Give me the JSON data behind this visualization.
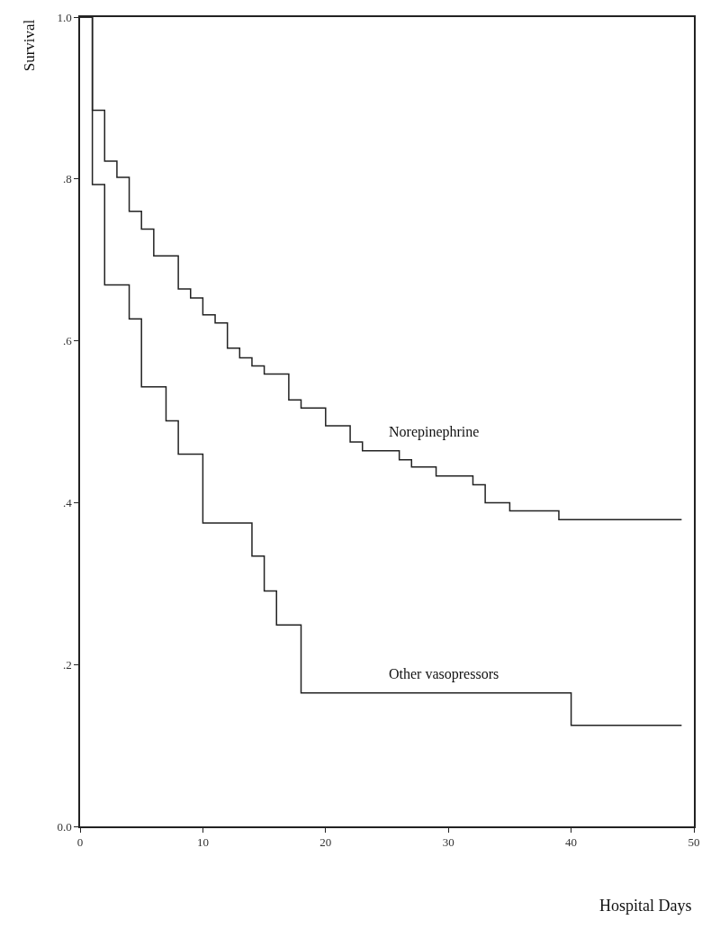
{
  "chart_data": {
    "type": "step",
    "xlabel": "Hospital Days",
    "ylabel": "Survival",
    "xlim": [
      0,
      50
    ],
    "xticks": [
      0,
      10,
      20,
      30,
      40,
      50
    ],
    "ylim": [
      0,
      1
    ],
    "yticks": [
      {
        "value": 1,
        "label": "1.0"
      },
      {
        "value": 0.8,
        "label": ".8"
      },
      {
        "value": 0.6,
        "label": ".6"
      },
      {
        "value": 0.4,
        "label": ".4"
      },
      {
        "value": 0.2,
        "label": ".2"
      },
      {
        "value": 0,
        "label": "0.0"
      }
    ],
    "legend": false,
    "marker": "none",
    "line_style": "solid",
    "series": [
      {
        "name": "Norepinephrine",
        "color": "#222222",
        "x": [
          0,
          1,
          2,
          3,
          4,
          5,
          6,
          8,
          9,
          10,
          11,
          12,
          13,
          14,
          15,
          17,
          18,
          20,
          22,
          23,
          26,
          27,
          29,
          32,
          33,
          35,
          39,
          49
        ],
        "values": [
          1.0,
          0.885,
          0.822,
          0.802,
          0.76,
          0.738,
          0.705,
          0.664,
          0.653,
          0.632,
          0.622,
          0.591,
          0.579,
          0.569,
          0.559,
          0.527,
          0.517,
          0.495,
          0.475,
          0.464,
          0.453,
          0.444,
          0.433,
          0.422,
          0.4,
          0.39,
          0.379,
          0.379
        ]
      },
      {
        "name": "Other vasopressors",
        "color": "#222222",
        "x": [
          0,
          1,
          2,
          4,
          5,
          7,
          8,
          10,
          14,
          15,
          16,
          18,
          40,
          49
        ],
        "values": [
          1.0,
          0.793,
          0.669,
          0.627,
          0.543,
          0.501,
          0.46,
          0.375,
          0.334,
          0.291,
          0.249,
          0.165,
          0.125,
          0.125
        ]
      }
    ]
  }
}
